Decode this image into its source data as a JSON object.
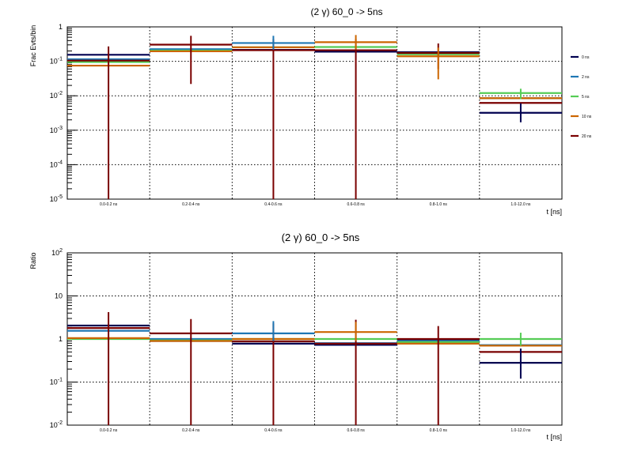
{
  "chart_data": [
    {
      "type": "step",
      "title": "(2 γ) 60_0 -> 5ns",
      "xlabel": "t [ns]",
      "ylabel": "Frac Evts/bin",
      "yscale": "log",
      "ylim": [
        1e-05,
        1
      ],
      "categories": [
        "0.0-0.2 ns",
        "0.2-0.4 ns",
        "0.4-0.6 ns",
        "0.6-0.8 ns",
        "0.8-1.0 ns",
        "1.0-12.0 ns"
      ],
      "ytick_labels": [
        {
          "value": 1,
          "base": "1",
          "exp": ""
        },
        {
          "value": 0.1,
          "base": "10",
          "exp": "-1"
        },
        {
          "value": 0.01,
          "base": "10",
          "exp": "-2"
        },
        {
          "value": 0.001,
          "base": "10",
          "exp": "-3"
        },
        {
          "value": 0.0001,
          "base": "10",
          "exp": "-4"
        },
        {
          "value": 1e-05,
          "base": "10",
          "exp": "-5"
        }
      ],
      "grid": true,
      "legend_position": "right",
      "series": [
        {
          "name": "0 ns",
          "color": "#000050",
          "values": [
            0.155,
            0.21,
            0.215,
            0.19,
            0.185,
            0.0032
          ]
        },
        {
          "name": "2 ns",
          "color": "#1f77b4",
          "values": [
            0.115,
            0.225,
            0.34,
            0.21,
            0.175,
            0.0085
          ]
        },
        {
          "name": "5 ns",
          "color": "#55cc55",
          "values": [
            0.095,
            0.205,
            0.255,
            0.26,
            0.16,
            0.012
          ]
        },
        {
          "name": "10 ns",
          "color": "#cc6600",
          "values": [
            0.075,
            0.195,
            0.255,
            0.36,
            0.14,
            0.0085
          ]
        },
        {
          "name": "20 ns",
          "color": "#7a0000",
          "values": [
            0.105,
            0.305,
            0.21,
            0.21,
            0.175,
            0.0062
          ]
        }
      ],
      "error_bars": [
        {
          "series": "20 ns",
          "bin": 0,
          "low": 1e-05,
          "high": 0.27
        },
        {
          "series": "20 ns",
          "bin": 1,
          "low": 0.022,
          "high": 0.55
        },
        {
          "series": "20 ns",
          "bin": 2,
          "low": 1e-05,
          "high": 0.45
        },
        {
          "series": "20 ns",
          "bin": 3,
          "low": 1e-05,
          "high": 0.45
        },
        {
          "series": "20 ns",
          "bin": 4,
          "low": 0.06,
          "high": 0.33
        },
        {
          "series": "0 ns",
          "bin": 5,
          "low": 0.0017,
          "high": 0.006
        },
        {
          "series": "2 ns",
          "bin": 2,
          "low": 0.22,
          "high": 0.55
        },
        {
          "series": "10 ns",
          "bin": 3,
          "low": 0.22,
          "high": 0.58
        },
        {
          "series": "10 ns",
          "bin": 4,
          "low": 0.03,
          "high": 0.25
        },
        {
          "series": "5 ns",
          "bin": 5,
          "low": 0.008,
          "high": 0.016
        }
      ]
    },
    {
      "type": "step",
      "title": "(2 γ) 60_0 -> 5ns",
      "xlabel": "t [ns]",
      "ylabel": "Ratio",
      "yscale": "log",
      "ylim": [
        0.01,
        100
      ],
      "categories": [
        "0.0-0.2 ns",
        "0.2-0.4 ns",
        "0.4-0.6 ns",
        "0.6-0.8 ns",
        "0.8-1.0 ns",
        "1.0-12.0 ns"
      ],
      "ytick_labels": [
        {
          "value": 100,
          "base": "10",
          "exp": "2"
        },
        {
          "value": 10,
          "base": "10",
          "exp": ""
        },
        {
          "value": 1,
          "base": "1",
          "exp": ""
        },
        {
          "value": 0.1,
          "base": "10",
          "exp": "-1"
        },
        {
          "value": 0.01,
          "base": "10",
          "exp": "-2"
        }
      ],
      "grid": true,
      "series": [
        {
          "name": "0 ns",
          "color": "#000050",
          "values": [
            2.05,
            0.9,
            0.78,
            0.73,
            0.95,
            0.28
          ]
        },
        {
          "name": "2 ns",
          "color": "#1f77b4",
          "values": [
            1.55,
            1.0,
            1.35,
            0.8,
            0.9,
            0.72
          ]
        },
        {
          "name": "5 ns",
          "color": "#55cc55",
          "values": [
            1.0,
            0.93,
            1.0,
            1.0,
            0.85,
            1.0
          ]
        },
        {
          "name": "10 ns",
          "color": "#cc6600",
          "values": [
            1.05,
            0.9,
            1.0,
            1.45,
            0.78,
            0.7
          ]
        },
        {
          "name": "20 ns",
          "color": "#7a0000",
          "values": [
            1.8,
            1.35,
            0.88,
            0.78,
            1.0,
            0.5
          ]
        }
      ],
      "error_bars": [
        {
          "series": "20 ns",
          "bin": 0,
          "low": 0.01,
          "high": 4.2
        },
        {
          "series": "20 ns",
          "bin": 1,
          "low": 0.01,
          "high": 2.9
        },
        {
          "series": "20 ns",
          "bin": 2,
          "low": 0.01,
          "high": 2.3
        },
        {
          "series": "20 ns",
          "bin": 3,
          "low": 0.01,
          "high": 2.8
        },
        {
          "series": "20 ns",
          "bin": 4,
          "low": 0.01,
          "high": 2.0
        },
        {
          "series": "0 ns",
          "bin": 5,
          "low": 0.12,
          "high": 0.6
        },
        {
          "series": "2 ns",
          "bin": 2,
          "low": 0.9,
          "high": 2.6
        },
        {
          "series": "10 ns",
          "bin": 3,
          "low": 0.9,
          "high": 2.5
        },
        {
          "series": "5 ns",
          "bin": 5,
          "low": 0.7,
          "high": 1.4
        }
      ]
    }
  ]
}
